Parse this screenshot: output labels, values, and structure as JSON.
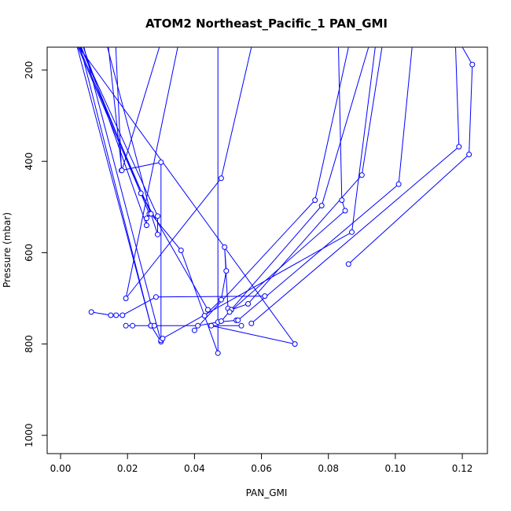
{
  "chart_data": {
    "type": "line",
    "title": "ATOM2 Northeast_Pacific_1 PAN_GMI",
    "xlabel": "PAN_GMI",
    "ylabel": "Pressure (mbar)",
    "xlim": [
      -0.004,
      0.1275
    ],
    "ylim": [
      1040,
      150
    ],
    "y_reversed": true,
    "x_ticks": [
      0.0,
      0.02,
      0.04,
      0.06,
      0.08,
      0.1,
      0.12
    ],
    "x_tick_labels": [
      "0.00",
      "0.02",
      "0.04",
      "0.06",
      "0.08",
      "0.10",
      "0.12"
    ],
    "y_ticks": [
      200,
      400,
      600,
      800,
      1000
    ],
    "y_tick_labels": [
      "200",
      "400",
      "600",
      "800",
      "1000"
    ],
    "grid": false,
    "legend": "none",
    "colors": {
      "series": "#0000ff",
      "axis": "#000000",
      "background": "#ffffff"
    },
    "series": [
      {
        "x": [
          0.007,
          0.03,
          0.027,
          0.005
        ],
        "y": [
          150,
          795,
          760,
          150
        ]
      },
      {
        "x": [
          0.0068,
          0.0257,
          0.0257,
          0.0265,
          0.0062
        ],
        "y": [
          150,
          540,
          525,
          515,
          150
        ]
      },
      {
        "x": [
          0.0059,
          0.027,
          0.027,
          0.028
        ],
        "y": [
          150,
          760,
          760,
          760
        ]
      },
      {
        "x": [
          0.006,
          0.029,
          0.029,
          0.027,
          0.0055
        ],
        "y": [
          150,
          520,
          560,
          515,
          150
        ]
      },
      {
        "x": [
          0.0055,
          0.07,
          0.045,
          0.054
        ],
        "y": [
          150,
          800,
          760,
          760
        ]
      },
      {
        "x": [
          0.0052,
          0.024,
          0.044
        ],
        "y": [
          150,
          470,
          725
        ]
      },
      {
        "x": [
          0.0165,
          0.0182,
          0.03,
          0.03
        ],
        "y": [
          150,
          420,
          402,
          792
        ]
      },
      {
        "x": [
          0.0295,
          0.0183,
          0.0143
        ],
        "y": [
          150,
          420,
          150
        ]
      },
      {
        "x": [
          0.035,
          0.0195,
          0.048,
          0.057
        ],
        "y": [
          150,
          700,
          437,
          150
        ]
      },
      {
        "x": [
          0.014,
          0.027,
          0.036,
          0.047,
          0.047
        ],
        "y": [
          150,
          515,
          595,
          820,
          150
        ]
      },
      {
        "x": [
          0.0092,
          0.015,
          0.0166,
          0.0185,
          0.0285,
          0.061
        ],
        "y": [
          730,
          737,
          737,
          737,
          697,
          695
        ]
      },
      {
        "x": [
          0.0195,
          0.0215,
          0.041,
          0.047,
          0.0525
        ],
        "y": [
          760,
          760,
          760,
          752,
          748
        ]
      },
      {
        "x": [
          0.043,
          0.048,
          0.0495,
          0.049,
          0.05,
          0.051
        ],
        "y": [
          738,
          703,
          640,
          588,
          722,
          725
        ]
      },
      {
        "x": [
          0.051,
          0.056,
          0.09,
          0.096
        ],
        "y": [
          725,
          712,
          430,
          150
        ]
      },
      {
        "x": [
          0.0305,
          0.087,
          0.094
        ],
        "y": [
          788,
          555,
          150
        ]
      },
      {
        "x": [
          0.04,
          0.076,
          0.086,
          0.081
        ],
        "y": [
          770,
          485,
          150,
          150
        ]
      },
      {
        "x": [
          0.0505,
          0.085,
          0.084,
          0.083
        ],
        "y": [
          730,
          508,
          485,
          150
        ]
      },
      {
        "x": [
          0.048,
          0.078,
          0.092
        ],
        "y": [
          750,
          497,
          150
        ]
      },
      {
        "x": [
          0.053,
          0.101,
          0.105
        ],
        "y": [
          748,
          450,
          150
        ]
      },
      {
        "x": [
          0.057,
          0.119,
          0.118
        ],
        "y": [
          755,
          368,
          150
        ]
      },
      {
        "x": [
          0.086,
          0.122,
          0.123,
          0.12
        ],
        "y": [
          625,
          385,
          188,
          150
        ]
      }
    ]
  }
}
